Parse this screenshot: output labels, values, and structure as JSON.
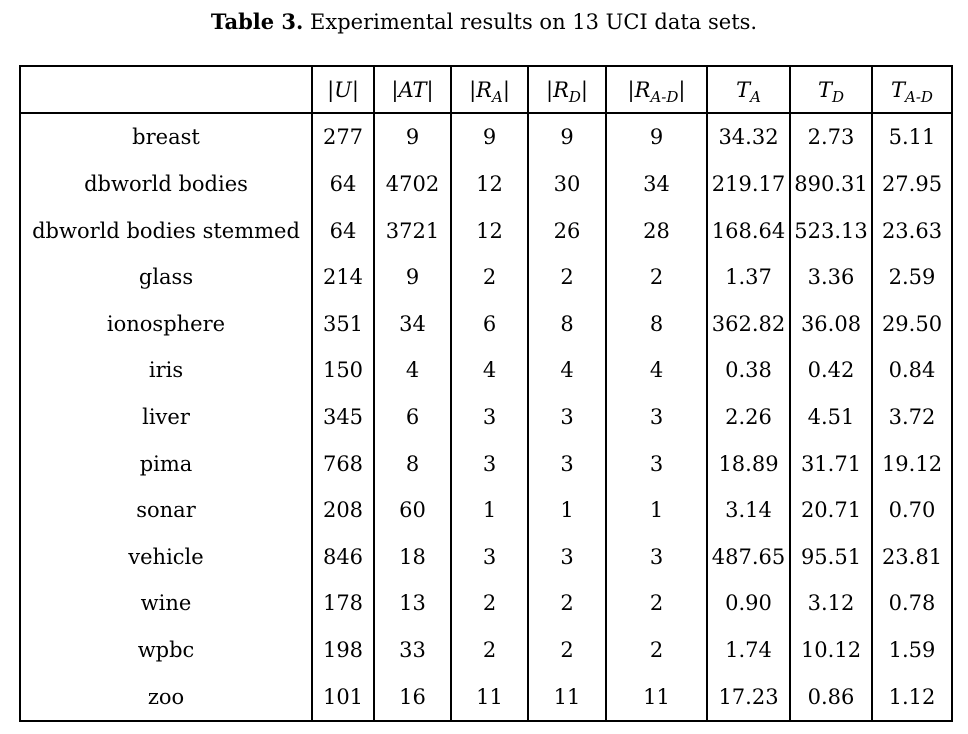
{
  "caption": {
    "label": "Table 3.",
    "text": " Experimental results on 13 UCI data sets."
  },
  "table": {
    "headers": [
      {
        "pre": "",
        "main": "",
        "sub": "",
        "post": ""
      },
      {
        "pre": "|",
        "main": "U",
        "sub": "",
        "post": "|"
      },
      {
        "pre": "|",
        "main": "AT",
        "sub": "",
        "post": "|"
      },
      {
        "pre": "|",
        "main": "R",
        "sub": "A",
        "post": "|"
      },
      {
        "pre": "|",
        "main": "R",
        "sub": "D",
        "post": "|"
      },
      {
        "pre": "|",
        "main": "R",
        "sub": "A-D",
        "post": "|"
      },
      {
        "pre": "",
        "main": "T",
        "sub": "A",
        "post": ""
      },
      {
        "pre": "",
        "main": "T",
        "sub": "D",
        "post": ""
      },
      {
        "pre": "",
        "main": "T",
        "sub": "A-D",
        "post": ""
      }
    ],
    "rows": [
      {
        "name": "breast",
        "values": [
          "277",
          "9",
          "9",
          "9",
          "9",
          "34.32",
          "2.73",
          "5.11"
        ],
        "bold": []
      },
      {
        "name": "dbworld bodies",
        "values": [
          "64",
          "4702",
          "12",
          "30",
          "34",
          "219.17",
          "890.31",
          "27.95"
        ],
        "bold": [
          2
        ]
      },
      {
        "name": "dbworld bodies stemmed",
        "values": [
          "64",
          "3721",
          "12",
          "26",
          "28",
          "168.64",
          "523.13",
          "23.63"
        ],
        "bold": [
          2
        ]
      },
      {
        "name": "glass",
        "values": [
          "214",
          "9",
          "2",
          "2",
          "2",
          "1.37",
          "3.36",
          "2.59"
        ],
        "bold": []
      },
      {
        "name": "ionosphere",
        "values": [
          "351",
          "34",
          "6",
          "8",
          "8",
          "362.82",
          "36.08",
          "29.50"
        ],
        "bold": [
          2
        ]
      },
      {
        "name": "iris",
        "values": [
          "150",
          "4",
          "4",
          "4",
          "4",
          "0.38",
          "0.42",
          "0.84"
        ],
        "bold": []
      },
      {
        "name": "liver",
        "values": [
          "345",
          "6",
          "3",
          "3",
          "3",
          "2.26",
          "4.51",
          "3.72"
        ],
        "bold": []
      },
      {
        "name": "pima",
        "values": [
          "768",
          "8",
          "3",
          "3",
          "3",
          "18.89",
          "31.71",
          "19.12"
        ],
        "bold": []
      },
      {
        "name": "sonar",
        "values": [
          "208",
          "60",
          "1",
          "1",
          "1",
          "3.14",
          "20.71",
          "0.70"
        ],
        "bold": []
      },
      {
        "name": "vehicle",
        "values": [
          "846",
          "18",
          "3",
          "3",
          "3",
          "487.65",
          "95.51",
          "23.81"
        ],
        "bold": []
      },
      {
        "name": "wine",
        "values": [
          "178",
          "13",
          "2",
          "2",
          "2",
          "0.90",
          "3.12",
          "0.78"
        ],
        "bold": []
      },
      {
        "name": "wpbc",
        "values": [
          "198",
          "33",
          "2",
          "2",
          "2",
          "1.74",
          "10.12",
          "1.59"
        ],
        "bold": []
      },
      {
        "name": "zoo",
        "values": [
          "101",
          "16",
          "11",
          "11",
          "11",
          "17.23",
          "0.86",
          "1.12"
        ],
        "bold": []
      }
    ]
  }
}
